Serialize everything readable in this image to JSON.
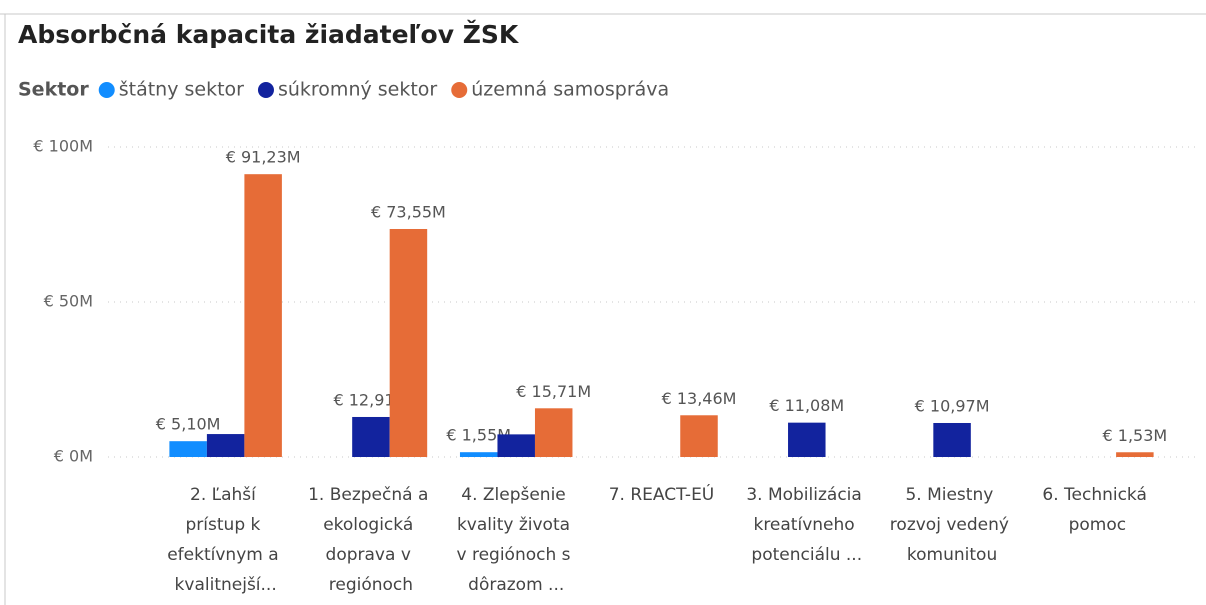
{
  "chart_data": {
    "type": "bar",
    "title": "Absorbčná kapacita žiadateľov ŽSK",
    "legend_title": "Sektor",
    "categories": [
      "2. Ľahší prístup k efektívnym a kvalitnejší...",
      "1. Bezpečná a ekologická doprava v regiónoch",
      "4. Zlepšenie kvality života v regiónoch s dôrazom ...",
      "7. REACT-EÚ",
      "3. Mobilizácia kreatívneho potenciálu ...",
      "5. Miestny rozvoj vedený komunitou",
      "6. Technická pomoc"
    ],
    "series": [
      {
        "name": "štátny sektor",
        "color": "#118DFF",
        "values": [
          5.1,
          null,
          1.55,
          null,
          null,
          null,
          null
        ],
        "value_labels": [
          "€ 5,10M",
          null,
          "€ 1,55M",
          null,
          null,
          null,
          null
        ]
      },
      {
        "name": "súkromný sektor",
        "color": "#12239E",
        "values": [
          7.4,
          12.91,
          7.3,
          null,
          11.08,
          10.97,
          null
        ],
        "value_labels": [
          null,
          "€ 12,91M",
          null,
          null,
          "€ 11,08M",
          "€ 10,97M",
          null
        ]
      },
      {
        "name": "územná samospráva",
        "color": "#E66C37",
        "values": [
          91.23,
          73.55,
          15.71,
          13.46,
          null,
          null,
          1.53
        ],
        "value_labels": [
          "€ 91,23M",
          "€ 73,55M",
          "€ 15,71M",
          "€ 13,46M",
          null,
          null,
          "€ 1,53M"
        ]
      }
    ],
    "ylim": [
      0,
      100
    ],
    "yticks": [
      {
        "value": 0,
        "label": "€ 0M"
      },
      {
        "value": 50,
        "label": "€ 50M"
      },
      {
        "value": 100,
        "label": "€ 100M"
      }
    ],
    "grid": true,
    "legend": "top-left"
  }
}
